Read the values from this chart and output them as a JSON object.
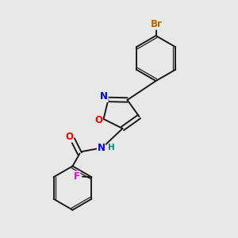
{
  "background_color": "#e8e8e8",
  "bond_color": "#1a1a1a",
  "atom_colors": {
    "N": "#0000ee",
    "O": "#ff0000",
    "F": "#ee00ee",
    "Br": "#bb6600",
    "H": "#008888"
  },
  "font_size": 8.5,
  "font_size_h": 7.5,
  "lw": 1.4,
  "lw_inner": 0.9
}
